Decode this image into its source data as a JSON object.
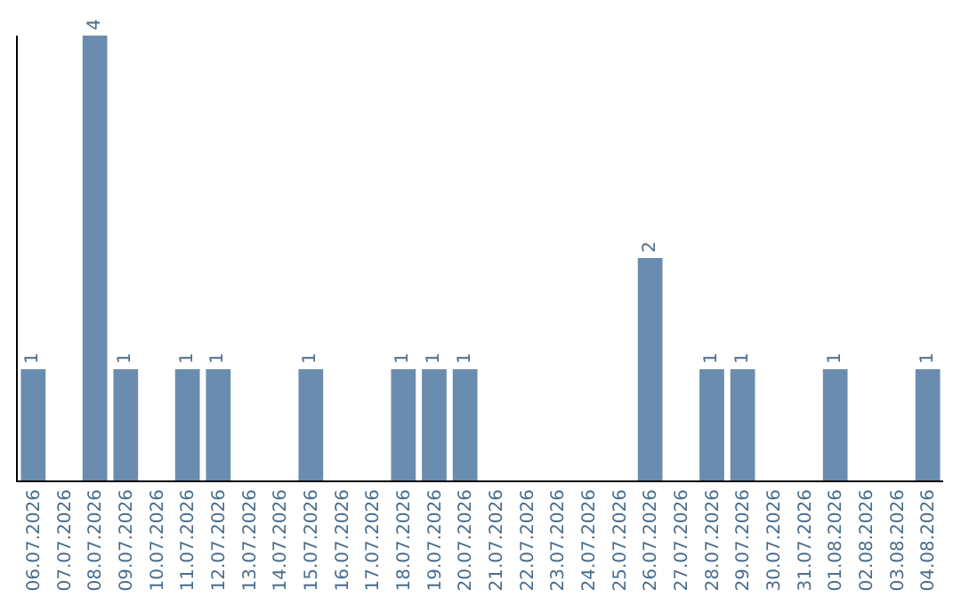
{
  "chart_data": {
    "type": "bar",
    "categories": [
      "06.07.2026",
      "07.07.2026",
      "08.07.2026",
      "09.07.2026",
      "10.07.2026",
      "11.07.2026",
      "12.07.2026",
      "13.07.2026",
      "14.07.2026",
      "15.07.2026",
      "16.07.2026",
      "17.07.2026",
      "18.07.2026",
      "19.07.2026",
      "20.07.2026",
      "21.07.2026",
      "22.07.2026",
      "23.07.2026",
      "24.07.2026",
      "25.07.2026",
      "26.07.2026",
      "27.07.2026",
      "28.07.2026",
      "29.07.2026",
      "30.07.2026",
      "31.07.2026",
      "01.08.2026",
      "02.08.2026",
      "03.08.2026",
      "04.08.2026"
    ],
    "values": [
      1,
      0,
      4,
      1,
      0,
      1,
      1,
      0,
      0,
      1,
      0,
      0,
      1,
      1,
      1,
      0,
      0,
      0,
      0,
      0,
      2,
      0,
      1,
      1,
      0,
      0,
      1,
      0,
      0,
      1
    ],
    "value_labels": [
      "1",
      null,
      "4",
      "1",
      null,
      "1",
      "1",
      null,
      null,
      "1",
      null,
      null,
      "1",
      "1",
      "1",
      null,
      null,
      null,
      null,
      null,
      "2",
      null,
      "1",
      "1",
      null,
      null,
      "1",
      null,
      null,
      "1"
    ],
    "color": "#6a8caf",
    "grid": false,
    "legend": false
  }
}
